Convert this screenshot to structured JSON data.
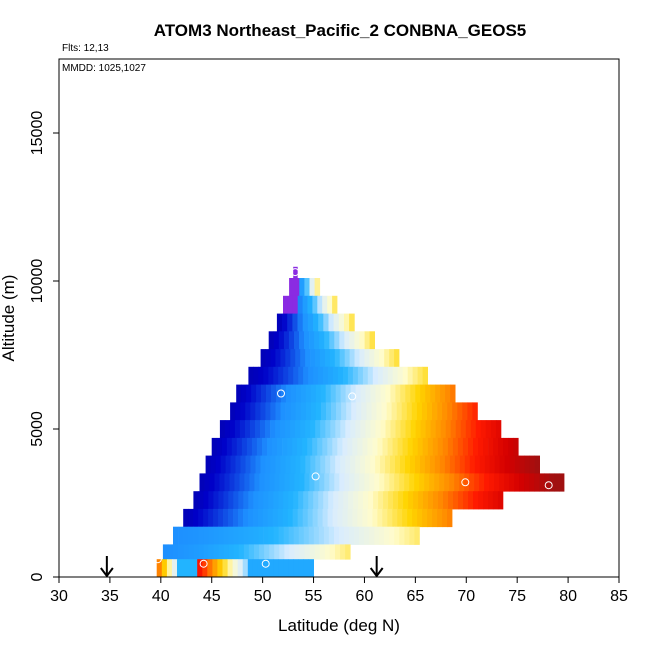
{
  "chart_data": {
    "type": "heatmap",
    "title": "ATOM3 Northeast_Pacific_2 CONBNA_GEOS5",
    "annotations": {
      "flights": "Flts: 12,13",
      "dates": "MMDD: 1025,1027"
    },
    "xlabel": "Latitude (deg N)",
    "ylabel": "Altitude (m)",
    "xlim": [
      30,
      85
    ],
    "ylim": [
      0,
      17500
    ],
    "xticks": [
      30,
      35,
      40,
      45,
      50,
      55,
      60,
      65,
      70,
      75,
      80,
      85
    ],
    "yticks": [
      0,
      5000,
      10000,
      15000
    ],
    "grid": false,
    "colormap": [
      "#0a0a70",
      "#0000c8",
      "#1e90ff",
      "#22b4ff",
      "#d8ecff",
      "#fffccc",
      "#ffd400",
      "#ff8800",
      "#ff1a00",
      "#d40000",
      "#a01010"
    ],
    "overlay_colormap": [
      "#5a10c8",
      "#8a2be2",
      "#1a10a0"
    ],
    "arrow_markers": [
      34.7,
      61.2
    ],
    "sample_points": [
      {
        "lat": 53.2,
        "alt": 10300
      },
      {
        "lat": 51.8,
        "alt": 6200
      },
      {
        "lat": 58.8,
        "alt": 6100
      },
      {
        "lat": 55.2,
        "alt": 3400
      },
      {
        "lat": 69.9,
        "alt": 3200
      },
      {
        "lat": 78.1,
        "alt": 3100
      },
      {
        "lat": 79.5,
        "alt": 4200
      },
      {
        "lat": 39.6,
        "alt": 1300
      },
      {
        "lat": 39.7,
        "alt": 600
      },
      {
        "lat": 44.2,
        "alt": 450
      },
      {
        "lat": 50.3,
        "alt": 450
      }
    ],
    "layers": [
      {
        "alt": 10100,
        "lat0": 53.0,
        "lat1": 53.4
      },
      {
        "alt": 9500,
        "lat0": 52.6,
        "lat1": 55.6
      },
      {
        "alt": 8900,
        "lat0": 52.0,
        "lat1": 57.3
      },
      {
        "alt": 8300,
        "lat0": 51.4,
        "lat1": 59.0
      },
      {
        "alt": 7700,
        "lat0": 50.6,
        "lat1": 61.0
      },
      {
        "alt": 7100,
        "lat0": 49.8,
        "lat1": 63.4
      },
      {
        "alt": 6500,
        "lat0": 48.6,
        "lat1": 66.2
      },
      {
        "alt": 5900,
        "lat0": 47.4,
        "lat1": 68.9
      },
      {
        "alt": 5300,
        "lat0": 46.8,
        "lat1": 71.1
      },
      {
        "alt": 4700,
        "lat0": 45.8,
        "lat1": 73.4
      },
      {
        "alt": 4100,
        "lat0": 45.0,
        "lat1": 75.1
      },
      {
        "alt": 3500,
        "lat0": 44.4,
        "lat1": 77.2
      },
      {
        "alt": 2900,
        "lat0": 43.8,
        "lat1": 79.6
      },
      {
        "alt": 2300,
        "lat0": 43.2,
        "lat1": 73.6
      },
      {
        "alt": 1700,
        "lat0": 42.2,
        "lat1": 68.6
      },
      {
        "alt": 1100,
        "lat0": 41.2,
        "lat1": 65.4
      },
      {
        "alt": 600,
        "lat0": 40.2,
        "lat1": 58.6
      },
      {
        "alt": 0,
        "lat0": 39.6,
        "lat1": 55.0
      }
    ]
  }
}
